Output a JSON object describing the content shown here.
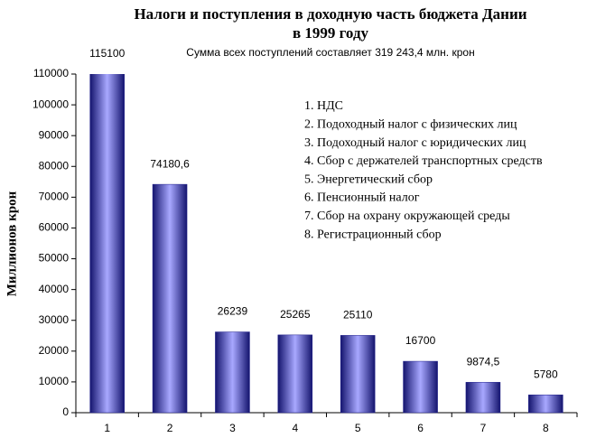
{
  "chart_data": {
    "type": "bar",
    "title": "Налоги и  поступления в доходную часть бюджета Дании",
    "title_line2": "в 1999 году",
    "subtitle": "Сумма всех  поступлений составляет 319 243,4  млн. крон",
    "y_label": "Миллионов крон",
    "categories": [
      "1",
      "2",
      "3",
      "4",
      "5",
      "6",
      "7",
      "8"
    ],
    "values": [
      115100,
      74180.6,
      26239,
      25265,
      25110,
      16700,
      9874.5,
      5780
    ],
    "value_labels": [
      "115100",
      "74180,6",
      "26239",
      "25265",
      "25110",
      "16700",
      "9874,5",
      "5780"
    ],
    "color": "#1c1c8a",
    "ylim": [
      0,
      110000
    ],
    "yticks": [
      0,
      10000,
      20000,
      30000,
      40000,
      50000,
      60000,
      70000,
      80000,
      90000,
      100000,
      110000
    ],
    "annotations": [
      "1. НДС",
      "2. Подоходный налог с физических лиц",
      "3. Подоходный налог с юридических лиц",
      "4. Сбор с держателей транспортных средств",
      "5. Энергетический сбор",
      "6. Пенсионный налог",
      "7. Сбор на охрану окружающей среды",
      "8. Регистрационный сбор"
    ]
  }
}
